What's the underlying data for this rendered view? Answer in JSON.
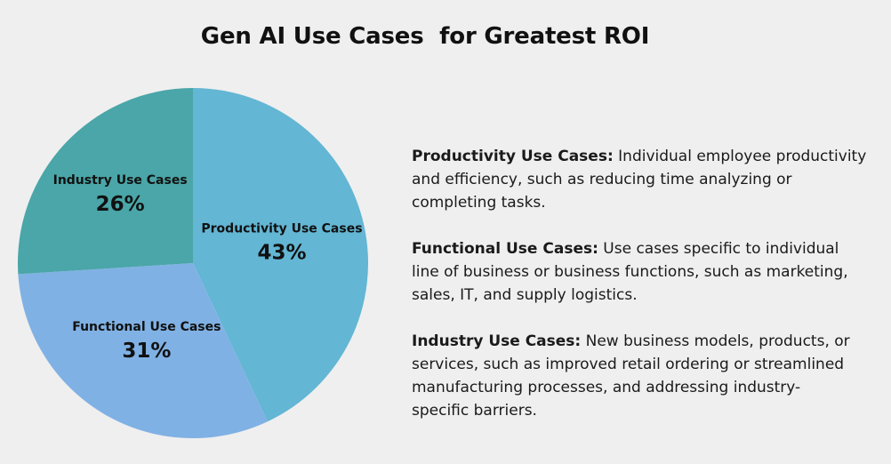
{
  "title": "Gen AI Use Cases  for Greatest ROI",
  "chart_data": {
    "type": "pie",
    "title": "Gen AI Use Cases  for Greatest ROI",
    "start_angle_deg": 0,
    "direction": "clockwise",
    "slices": [
      {
        "label": "Productivity Use Cases",
        "value": 43,
        "value_label": "43%",
        "color": "#63b6d4"
      },
      {
        "label": "Functional Use Cases",
        "value": 31,
        "value_label": "31%",
        "color": "#80b1e4"
      },
      {
        "label": "Industry Use Cases",
        "value": 26,
        "value_label": "26%",
        "color": "#4aa6a8"
      }
    ]
  },
  "descriptions": [
    {
      "heading": "Productivity Use Cases:",
      "lines": [
        " Individual employee productivity",
        "and efficiency, such as reducing time analyzing or",
        "completing tasks."
      ]
    },
    {
      "heading": "Functional Use Cases:",
      "lines": [
        " Use cases specific to individual",
        "line of business or business functions, such as marketing,",
        "sales, IT, and supply logistics."
      ]
    },
    {
      "heading": "Industry Use Cases:",
      "lines": [
        " New business models, products, or",
        "services, such as  improved retail ordering or streamlined",
        "manufacturing processes, and addressing industry-",
        "specific barriers."
      ]
    }
  ]
}
